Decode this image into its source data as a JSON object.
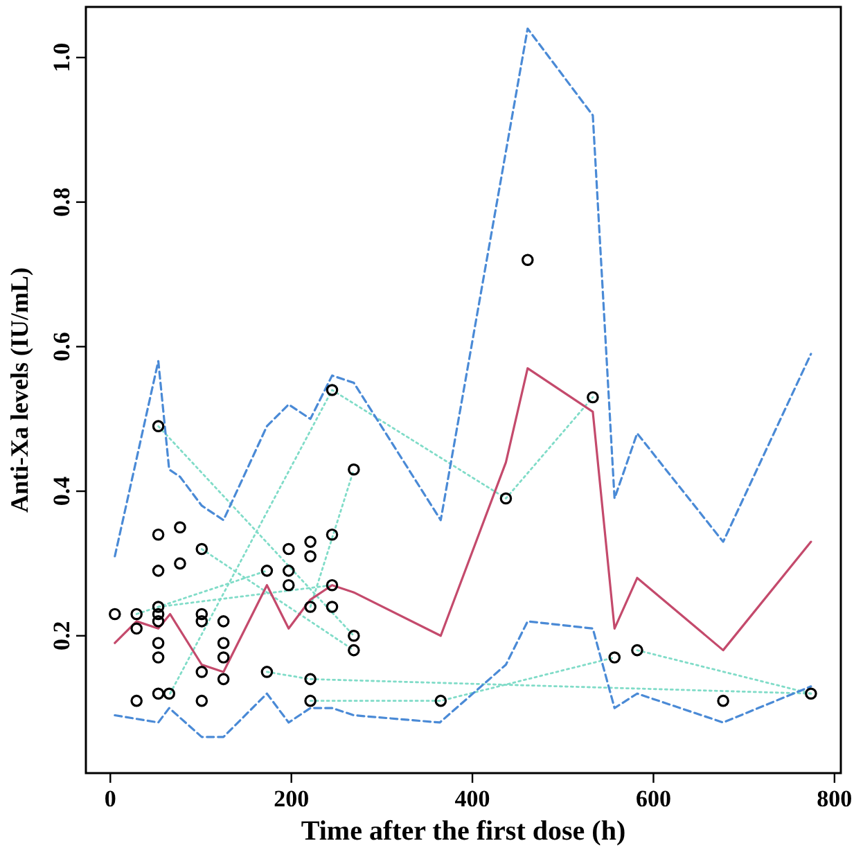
{
  "chart_data": {
    "type": "scatter",
    "xlabel": "Time after the first dose (h)",
    "ylabel": "Anti-Xa levels (IU/mL)",
    "xlim": [
      -27,
      807
    ],
    "ylim": [
      0.01,
      1.07
    ],
    "xticks": [
      0,
      200,
      400,
      600,
      800
    ],
    "yticks": [
      0.2,
      0.4,
      0.6,
      0.8,
      {
        "value": 1,
        "label": "1.0"
      }
    ],
    "grid": false,
    "series": [
      {
        "type": "line",
        "line_style": "dotted",
        "color": "#80dcc8",
        "x": [
          53,
          269
        ],
        "values": [
          0.49,
          0.2
        ]
      },
      {
        "type": "line",
        "line_style": "dotted",
        "color": "#80dcc8",
        "x": [
          101,
          269
        ],
        "values": [
          0.32,
          0.18
        ]
      },
      {
        "type": "line",
        "line_style": "dotted",
        "color": "#80dcc8",
        "x": [
          29,
          173
        ],
        "values": [
          0.23,
          0.29
        ]
      },
      {
        "type": "line",
        "line_style": "dotted",
        "color": "#80dcc8",
        "x": [
          53,
          245
        ],
        "values": [
          0.24,
          0.27
        ]
      },
      {
        "type": "line",
        "line_style": "dotted",
        "color": "#80dcc8",
        "x": [
          66,
          245,
          437,
          533
        ],
        "values": [
          0.12,
          0.54,
          0.39,
          0.53
        ]
      },
      {
        "type": "line",
        "line_style": "dotted",
        "color": "#80dcc8",
        "x": [
          173,
          221,
          774
        ],
        "values": [
          0.15,
          0.14,
          0.12
        ]
      },
      {
        "type": "line",
        "line_style": "dotted",
        "color": "#80dcc8",
        "x": [
          221,
          365,
          557
        ],
        "values": [
          0.11,
          0.11,
          0.17
        ]
      },
      {
        "type": "line",
        "line_style": "dotted",
        "color": "#80dcc8",
        "x": [
          221,
          269
        ],
        "values": [
          0.24,
          0.43
        ]
      },
      {
        "type": "line",
        "line_style": "dotted",
        "color": "#80dcc8",
        "x": [
          582,
          774
        ],
        "values": [
          0.18,
          0.12
        ]
      },
      {
        "type": "line",
        "line_style": "dashed",
        "color": "#4a8ad6",
        "x": [
          5,
          53,
          65,
          77,
          101,
          125,
          173,
          197,
          221,
          245,
          269,
          365,
          461,
          533,
          557,
          582,
          677,
          774
        ],
        "values": [
          0.31,
          0.58,
          0.43,
          0.42,
          0.38,
          0.36,
          0.49,
          0.52,
          0.5,
          0.56,
          0.55,
          0.36,
          1.04,
          0.92,
          0.39,
          0.48,
          0.33,
          0.59
        ]
      },
      {
        "type": "line",
        "line_style": "dashed",
        "color": "#4a8ad6",
        "x": [
          5,
          29,
          53,
          65,
          101,
          125,
          173,
          197,
          221,
          245,
          269,
          364,
          437,
          461,
          533,
          557,
          582,
          677,
          774
        ],
        "values": [
          0.09,
          0.085,
          0.08,
          0.1,
          0.06,
          0.06,
          0.12,
          0.08,
          0.1,
          0.1,
          0.09,
          0.08,
          0.16,
          0.22,
          0.21,
          0.1,
          0.12,
          0.08,
          0.13
        ]
      },
      {
        "type": "line",
        "line_style": "solid",
        "color": "#c44a6c",
        "x": [
          5,
          29,
          53,
          66,
          101,
          125,
          173,
          197,
          221,
          245,
          269,
          365,
          437,
          461,
          533,
          557,
          582,
          677,
          774
        ],
        "values": [
          0.19,
          0.22,
          0.21,
          0.23,
          0.16,
          0.15,
          0.27,
          0.21,
          0.25,
          0.27,
          0.26,
          0.2,
          0.44,
          0.57,
          0.51,
          0.21,
          0.28,
          0.18,
          0.33
        ]
      },
      {
        "marker": "circle",
        "color": "#000000",
        "x": [
          5,
          29,
          29,
          29,
          53,
          53,
          53,
          53,
          53,
          53,
          53,
          53,
          53,
          65,
          77,
          77,
          101,
          101,
          101,
          101,
          101,
          125,
          125,
          125,
          125,
          173,
          173,
          197,
          197,
          197,
          221,
          221,
          221,
          221,
          221,
          245,
          245,
          245,
          245,
          269,
          269,
          269,
          365,
          437,
          461,
          533,
          557,
          582,
          677,
          774
        ],
        "values": [
          0.23,
          0.23,
          0.21,
          0.11,
          0.49,
          0.34,
          0.29,
          0.24,
          0.23,
          0.22,
          0.19,
          0.17,
          0.12,
          0.12,
          0.35,
          0.3,
          0.32,
          0.23,
          0.22,
          0.15,
          0.11,
          0.22,
          0.19,
          0.17,
          0.14,
          0.29,
          0.15,
          0.32,
          0.29,
          0.27,
          0.33,
          0.31,
          0.24,
          0.14,
          0.11,
          0.54,
          0.34,
          0.27,
          0.24,
          0.43,
          0.2,
          0.18,
          0.11,
          0.39,
          0.72,
          0.53,
          0.17,
          0.18,
          0.11,
          0.12
        ]
      }
    ]
  }
}
